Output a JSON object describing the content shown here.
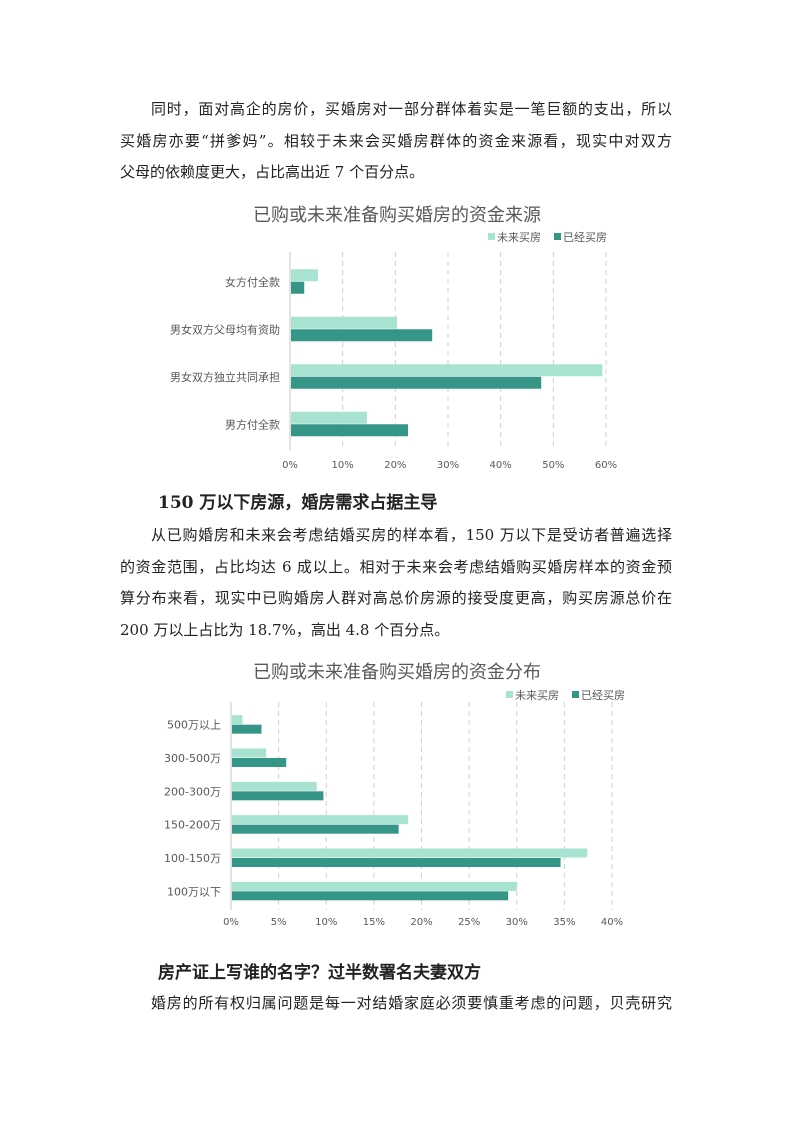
{
  "paragraphs": [
    [
      "同时，面对高企的房价，买婚房对一部分群体着实是一笔巨额的支出，所以",
      "买婚房亦要“拼爹妈”。相较于未来会买婚房群体的资金来源看，现实中对双方",
      "父母的依赖度更大，占比高出近 7 个百分点。"
    ],
    [
      "从已购婚房和未来会考虑结婚买房的样本看，150 万以下是受访者普遍选择",
      "的资金范围，占比均达 6 成以上。相对于未来会考虑结婚购买婚房样本的资金预",
      "算分布来看，现实中已购婚房人群对高总价房源的接受度更高，购买房源总价在",
      "200 万以上占比为 18.7%，高出 4.8 个百分点。"
    ],
    [
      "婚房的所有权归属问题是每一对结婚家庭必须要慎重考虑的问题，贝壳研究"
    ]
  ],
  "headings": [
    "150 万以下房源，婚房需求占据主导",
    "房产证上写谁的名字？过半数署名夫妻双方"
  ],
  "colors": {
    "future": "#a8e2d0",
    "bought": "#359688",
    "grid": "#d0d0d0",
    "text": "#595959"
  },
  "chart_data": [
    {
      "type": "bar",
      "orientation": "horizontal",
      "title": "已购或未来准备购买婚房的资金来源",
      "categories": [
        "女方付全款",
        "男女双方父母均有资助",
        "男女双方独立共同承担",
        "男方付全款"
      ],
      "series": [
        {
          "name": "未来买房",
          "values": [
            5.3,
            20.3,
            59.3,
            14.6
          ]
        },
        {
          "name": "已经买房",
          "values": [
            2.7,
            27.0,
            47.7,
            22.4
          ]
        }
      ],
      "xlim": [
        0,
        60
      ],
      "ticks": [
        "0%",
        "10%",
        "20%",
        "30%",
        "40%",
        "50%",
        "60%"
      ],
      "grid": true,
      "legend": "top-right"
    },
    {
      "type": "bar",
      "orientation": "horizontal",
      "title": "已购或未来准备购买婚房的资金分布",
      "categories": [
        "500万以上",
        "300-500万",
        "200-300万",
        "150-200万",
        "100-150万",
        "100万以下"
      ],
      "series": [
        {
          "name": "未来买房",
          "values": [
            1.2,
            3.7,
            9.0,
            18.6,
            37.4,
            30.0
          ]
        },
        {
          "name": "已经买房",
          "values": [
            3.2,
            5.8,
            9.7,
            17.6,
            34.6,
            29.1
          ]
        }
      ],
      "xlim": [
        0,
        40
      ],
      "ticks": [
        "0%",
        "5%",
        "10%",
        "15%",
        "20%",
        "25%",
        "30%",
        "35%",
        "40%"
      ],
      "grid": true,
      "legend": "top-right"
    }
  ]
}
